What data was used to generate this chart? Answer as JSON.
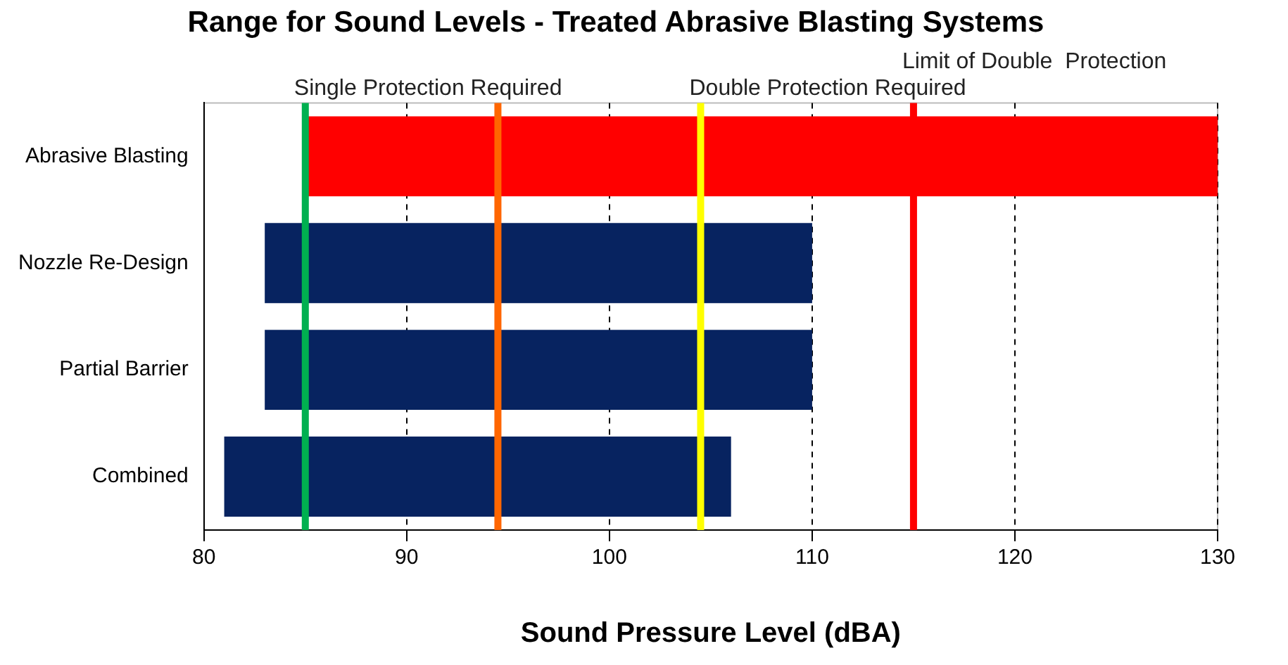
{
  "chart_data": {
    "type": "bar",
    "orientation": "horizontal",
    "title": "Range for Sound Levels - Treated Abrasive Blasting Systems",
    "xlabel": "Sound Pressure Level (dBA)",
    "categories": [
      "Abrasive Blasting",
      "Nozzle Re-Design",
      "Partial Barrier",
      "Combined"
    ],
    "base": [
      85,
      83,
      83,
      81
    ],
    "values": [
      45,
      27,
      27,
      25
    ],
    "colors": [
      "#ff0000",
      "#072360",
      "#072360",
      "#072360"
    ],
    "xlim": [
      80,
      130
    ],
    "xticks": [
      80,
      90,
      100,
      110,
      120,
      130
    ],
    "grid": "x",
    "legend": false,
    "ref_lines": [
      {
        "axis": "x",
        "value": 85,
        "label": "Single Protection Required",
        "color": "#00b050"
      },
      {
        "axis": "x",
        "value": 94.5,
        "label": null,
        "color": "#ff6600"
      },
      {
        "axis": "x",
        "value": 104.5,
        "label": "Double Protection Required",
        "color": "#ffff00"
      },
      {
        "axis": "x",
        "value": 115,
        "label": "Limit of Double  Protection",
        "color": "#ff0000"
      }
    ]
  }
}
